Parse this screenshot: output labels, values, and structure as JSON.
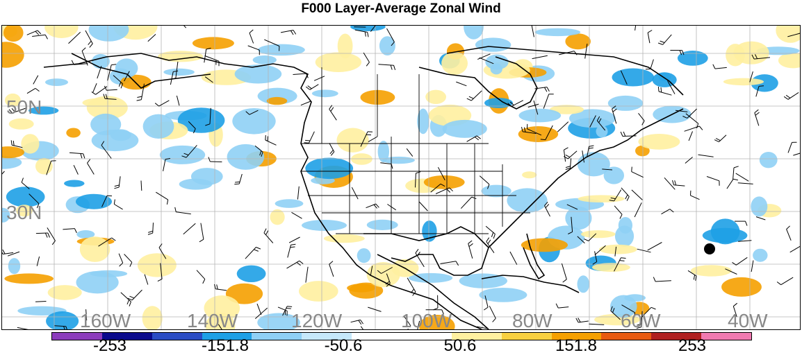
{
  "title": "F000 Layer-Average Zonal Wind",
  "lat_labels": [
    "50N",
    "30N"
  ],
  "lon_labels": [
    "160W",
    "140W",
    "120W",
    "100W",
    "80W",
    "60W",
    "40W"
  ],
  "colorbar": {
    "colors": [
      "#8c3cbc",
      "#0a0a8c",
      "#2a4cc4",
      "#1ea0e6",
      "#8fd0f5",
      "#c6e8fa",
      "#ffffff",
      "#ffffff",
      "#fff0a0",
      "#f8d040",
      "#f5a000",
      "#e85a10",
      "#b02020",
      "#f07ab0"
    ],
    "labels": [
      "-253",
      "-151.8",
      "-50.6",
      "50.6",
      "151.8",
      "253"
    ]
  },
  "map": {
    "land_border_color": "#000000",
    "grid_color": "#b4b4b4",
    "negative_color": "#8fd0f5",
    "negative_strong_color": "#1ea0e6",
    "positive_color": "#fff0a0",
    "positive_strong_color": "#f5a000"
  }
}
